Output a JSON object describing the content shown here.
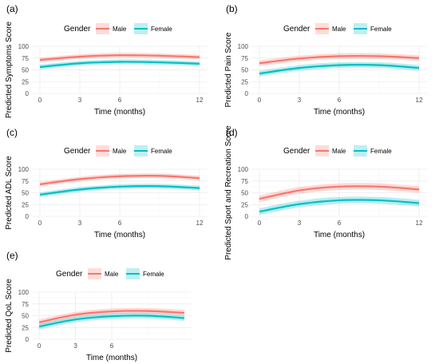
{
  "colors": {
    "male": "#F8766D",
    "female": "#00BFC4"
  },
  "legend": {
    "title": "Gender",
    "items": [
      {
        "label": "Male",
        "color": "#F8766D"
      },
      {
        "label": "Female",
        "color": "#00BFC4"
      }
    ]
  },
  "chart_data": [
    {
      "type": "line",
      "panel_label": "(a)",
      "xlabel": "Time (months)",
      "ylabel": "Predicted Symptoms Score",
      "xlim": [
        -0.6,
        12.6
      ],
      "ylim": [
        0,
        100
      ],
      "xticks": [
        0,
        3,
        6,
        12
      ],
      "yticks": [
        0,
        25,
        50,
        75,
        100
      ],
      "legend_position": "top",
      "grid": true,
      "series": [
        {
          "name": "Male",
          "x": [
            0,
            3,
            6,
            9,
            12
          ],
          "y": [
            71,
            78,
            81,
            80,
            77
          ],
          "band_halfwidth": 5
        },
        {
          "name": "Female",
          "x": [
            0,
            3,
            6,
            9,
            12
          ],
          "y": [
            56,
            64,
            67,
            66,
            63
          ],
          "band_halfwidth": 5
        }
      ]
    },
    {
      "type": "line",
      "panel_label": "(b)",
      "xlabel": "Time (months)",
      "ylabel": "Predicted Pain Score",
      "xlim": [
        -0.6,
        12.6
      ],
      "ylim": [
        0,
        100
      ],
      "xticks": [
        0,
        3,
        6,
        12
      ],
      "yticks": [
        0,
        25,
        50,
        75,
        100
      ],
      "legend_position": "top",
      "grid": true,
      "series": [
        {
          "name": "Male",
          "x": [
            0,
            3,
            6,
            9,
            12
          ],
          "y": [
            64,
            74,
            79,
            79,
            75
          ],
          "band_halfwidth": 6
        },
        {
          "name": "Female",
          "x": [
            0,
            3,
            6,
            9,
            12
          ],
          "y": [
            42,
            54,
            60,
            60,
            54
          ],
          "band_halfwidth": 6
        }
      ]
    },
    {
      "type": "line",
      "panel_label": "(c)",
      "xlabel": "Time (months)",
      "ylabel": "Predicted ADL Score",
      "xlim": [
        -0.6,
        12.6
      ],
      "ylim": [
        0,
        100
      ],
      "xticks": [
        0,
        3,
        6,
        12
      ],
      "yticks": [
        0,
        25,
        50,
        75,
        100
      ],
      "legend_position": "top",
      "grid": true,
      "series": [
        {
          "name": "Male",
          "x": [
            0,
            3,
            6,
            9,
            12
          ],
          "y": [
            68,
            79,
            85,
            86,
            81
          ],
          "band_halfwidth": 5
        },
        {
          "name": "Female",
          "x": [
            0,
            3,
            6,
            9,
            12
          ],
          "y": [
            46,
            57,
            63,
            64,
            60
          ],
          "band_halfwidth": 5
        }
      ]
    },
    {
      "type": "line",
      "panel_label": "(d)",
      "xlabel": "Time (months)",
      "ylabel": "Predicted Sport and Recreation Score",
      "xlim": [
        -0.6,
        12.6
      ],
      "ylim": [
        0,
        100
      ],
      "xticks": [
        0,
        3,
        6,
        12
      ],
      "yticks": [
        0,
        25,
        50,
        75,
        100
      ],
      "legend_position": "top",
      "grid": true,
      "series": [
        {
          "name": "Male",
          "x": [
            0,
            3,
            6,
            9,
            12
          ],
          "y": [
            37,
            55,
            63,
            63,
            57
          ],
          "band_halfwidth": 7
        },
        {
          "name": "Female",
          "x": [
            0,
            3,
            6,
            9,
            12
          ],
          "y": [
            10,
            26,
            34,
            34,
            28
          ],
          "band_halfwidth": 7
        }
      ]
    },
    {
      "type": "line",
      "panel_label": "(e)",
      "xlabel": "Time (months)",
      "ylabel": "Predicted QoL Score",
      "xlim": [
        -0.6,
        12.6
      ],
      "ylim": [
        0,
        100
      ],
      "xticks": [
        0,
        3,
        6
      ],
      "yticks": [
        0,
        25,
        50,
        75,
        100
      ],
      "legend_position": "top",
      "grid": true,
      "series": [
        {
          "name": "Male",
          "x": [
            0,
            3,
            6,
            9,
            12
          ],
          "y": [
            36,
            52,
            59,
            60,
            56
          ],
          "band_halfwidth": 6
        },
        {
          "name": "Female",
          "x": [
            0,
            3,
            6,
            9,
            12
          ],
          "y": [
            27,
            42,
            49,
            50,
            45
          ],
          "band_halfwidth": 6
        }
      ]
    }
  ]
}
